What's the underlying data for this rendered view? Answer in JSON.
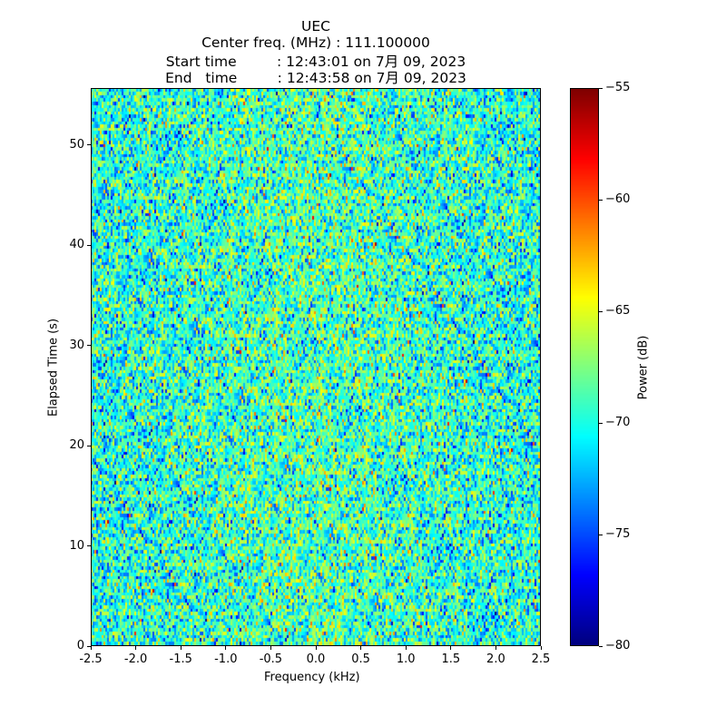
{
  "chart_data": {
    "type": "heatmap",
    "title_lines": [
      "UEC",
      "Center freq. (MHz) : 111.100000",
      "Start time         : 12:43:01 on 7月 09, 2023",
      "End   time         : 12:43:58 on 7月 09, 2023"
    ],
    "xlabel": "Frequency (kHz)",
    "ylabel": "Elapsed Time (s)",
    "xlim": [
      -2.5,
      2.5
    ],
    "ylim": [
      0,
      55.7
    ],
    "xticks": [
      -2.5,
      -2.0,
      -1.5,
      -1.0,
      -0.5,
      0.0,
      0.5,
      1.0,
      1.5,
      2.0,
      2.5
    ],
    "xtick_labels": [
      "-2.5",
      "-2.0",
      "-1.5",
      "-1.0",
      "-0.5",
      "0.0",
      "0.5",
      "1.0",
      "1.5",
      "2.0",
      "2.5"
    ],
    "yticks": [
      0,
      10,
      20,
      30,
      40,
      50
    ],
    "ytick_labels": [
      "0",
      "10",
      "20",
      "30",
      "40",
      "50"
    ],
    "colorbar": {
      "label": "Power (dB)",
      "colormap": "jet",
      "range": [
        -80,
        -55
      ],
      "ticks": [
        -80,
        -75,
        -70,
        -65,
        -60,
        -55
      ],
      "tick_labels": [
        "−80",
        "−75",
        "−70",
        "−65",
        "−60",
        "−55"
      ]
    },
    "data_summary": {
      "description_of_values": "random noise power, mean approx -70 dB, std approx 3 dB, slightly higher near 0 kHz",
      "mean_db": -70,
      "std_db": 3,
      "center_boost_db": 1.2,
      "freq_bins": 248,
      "time_bins": 170
    }
  }
}
